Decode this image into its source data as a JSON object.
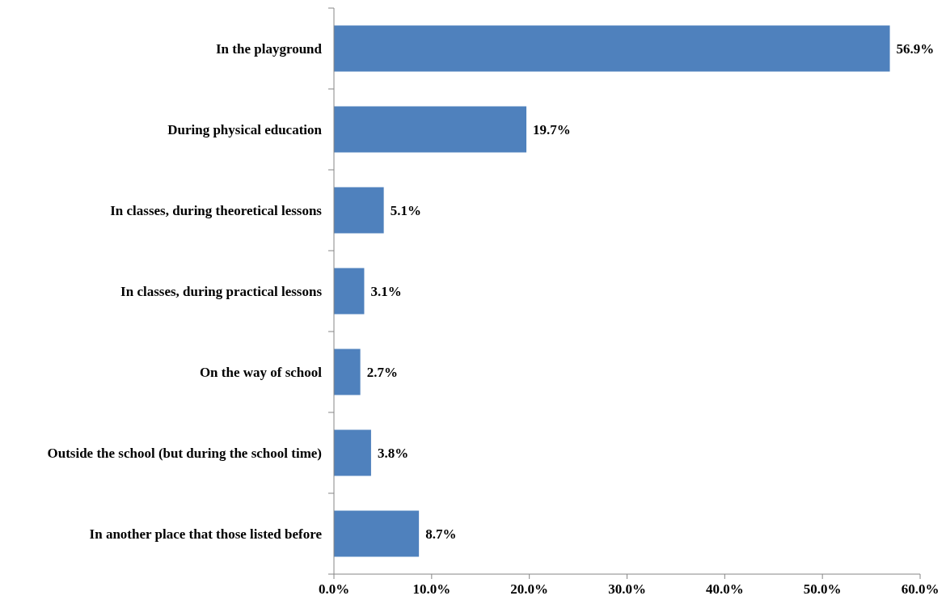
{
  "chart_data": {
    "type": "bar",
    "orientation": "horizontal",
    "categories": [
      "In the playground",
      "During physical education",
      "In classes, during theoretical lessons",
      "In classes, during practical lessons",
      "On the way of school",
      "Outside the school (but during the school time)",
      "In another place that those listed before"
    ],
    "values": [
      56.9,
      19.7,
      5.1,
      3.1,
      2.7,
      3.8,
      8.7
    ],
    "value_labels": [
      "56.9%",
      "19.7%",
      "5.1%",
      "3.1%",
      "2.7%",
      "3.8%",
      "8.7%"
    ],
    "color": "#4f81bd",
    "xlim": [
      0,
      60
    ],
    "xticks": [
      {
        "value": 0,
        "label": "0.0%"
      },
      {
        "value": 10,
        "label": "10.0%"
      },
      {
        "value": 20,
        "label": "20.0%"
      },
      {
        "value": 30,
        "label": "30.0%"
      },
      {
        "value": 40,
        "label": "40.0%"
      },
      {
        "value": 50,
        "label": "50.0%"
      },
      {
        "value": 60,
        "label": "60.0%"
      }
    ],
    "grid": false
  }
}
